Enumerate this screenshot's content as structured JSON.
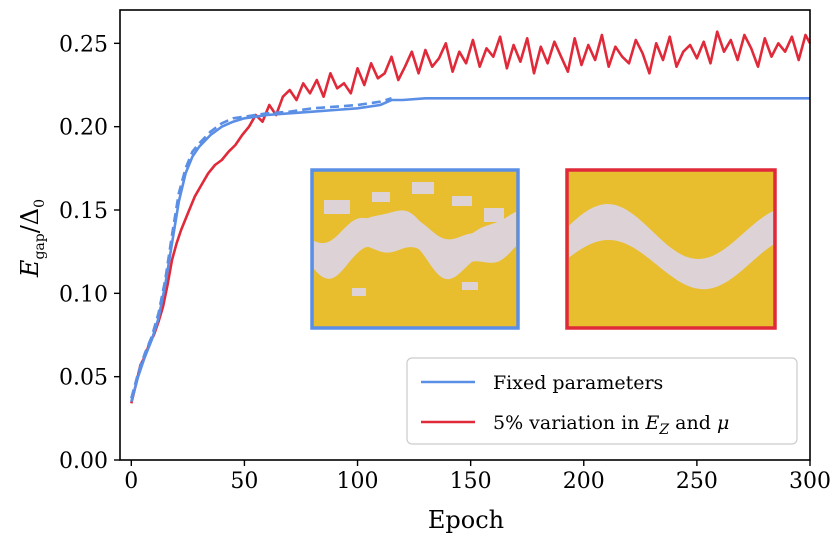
{
  "chart_data": {
    "type": "line",
    "xlabel": "Epoch",
    "ylabel": {
      "main": "E",
      "sub": "gap",
      "slash": "/",
      "delta": "Δ",
      "delta_sub": "0"
    },
    "xlim": [
      -5,
      300
    ],
    "ylim": [
      0,
      0.27
    ],
    "xticks": [
      0,
      50,
      100,
      150,
      200,
      250,
      300
    ],
    "xtick_labels": [
      "0",
      "50",
      "100",
      "150",
      "200",
      "250",
      "300"
    ],
    "yticks": [
      0.0,
      0.05,
      0.1,
      0.15,
      0.2,
      0.25
    ],
    "ytick_labels": [
      "0.00",
      "0.05",
      "0.10",
      "0.15",
      "0.20",
      "0.25"
    ],
    "grid": false,
    "legend_position": "bottom-right",
    "series": [
      {
        "name": "Fixed parameters",
        "color": "#5b8fe6",
        "style": "solid",
        "x": [
          0,
          3,
          6,
          9,
          12,
          15,
          18,
          21,
          24,
          27,
          30,
          35,
          40,
          45,
          50,
          55,
          60,
          70,
          80,
          90,
          100,
          110,
          115,
          120,
          130,
          150,
          200,
          250,
          300
        ],
        "y": [
          0.035,
          0.05,
          0.062,
          0.072,
          0.085,
          0.105,
          0.13,
          0.155,
          0.172,
          0.182,
          0.188,
          0.195,
          0.2,
          0.203,
          0.205,
          0.206,
          0.207,
          0.208,
          0.209,
          0.21,
          0.211,
          0.213,
          0.216,
          0.216,
          0.217,
          0.217,
          0.217,
          0.217,
          0.217
        ]
      },
      {
        "name": "",
        "color": "#5b8fe6",
        "style": "dashed",
        "x": [
          0,
          3,
          6,
          9,
          12,
          15,
          18,
          21,
          24,
          27,
          30,
          35,
          40,
          45,
          50,
          55,
          60,
          70,
          80,
          90,
          100,
          110,
          115
        ],
        "y": [
          0.037,
          0.052,
          0.064,
          0.074,
          0.088,
          0.108,
          0.135,
          0.16,
          0.175,
          0.185,
          0.19,
          0.197,
          0.202,
          0.205,
          0.206,
          0.207,
          0.208,
          0.209,
          0.211,
          0.212,
          0.213,
          0.215,
          0.217
        ]
      },
      {
        "name": "5% variation in E_Z and μ",
        "color": "#e02a3a",
        "style": "solid",
        "x": [
          0,
          2,
          4,
          6,
          8,
          10,
          12,
          14,
          16,
          18,
          20,
          22,
          25,
          28,
          31,
          34,
          37,
          40,
          43,
          46,
          49,
          52,
          55,
          58,
          61,
          64,
          67,
          70,
          73,
          76,
          79,
          82,
          85,
          88,
          91,
          94,
          97,
          100,
          103,
          106,
          109,
          112,
          115,
          118,
          121,
          124,
          127,
          130,
          133,
          136,
          139,
          142,
          145,
          148,
          151,
          154,
          157,
          160,
          163,
          166,
          169,
          172,
          175,
          178,
          181,
          184,
          187,
          190,
          193,
          196,
          199,
          202,
          205,
          208,
          211,
          214,
          217,
          220,
          223,
          226,
          229,
          232,
          235,
          238,
          241,
          244,
          247,
          250,
          253,
          256,
          259,
          262,
          265,
          268,
          271,
          274,
          277,
          280,
          283,
          286,
          289,
          292,
          295,
          298,
          300
        ],
        "y": [
          0.034,
          0.045,
          0.057,
          0.062,
          0.07,
          0.075,
          0.083,
          0.092,
          0.105,
          0.12,
          0.13,
          0.138,
          0.148,
          0.158,
          0.165,
          0.172,
          0.177,
          0.18,
          0.185,
          0.189,
          0.195,
          0.2,
          0.207,
          0.203,
          0.213,
          0.207,
          0.218,
          0.222,
          0.216,
          0.226,
          0.22,
          0.228,
          0.218,
          0.232,
          0.223,
          0.226,
          0.22,
          0.235,
          0.225,
          0.238,
          0.229,
          0.232,
          0.242,
          0.228,
          0.236,
          0.245,
          0.232,
          0.246,
          0.236,
          0.241,
          0.25,
          0.233,
          0.245,
          0.238,
          0.252,
          0.236,
          0.247,
          0.242,
          0.254,
          0.235,
          0.249,
          0.239,
          0.253,
          0.232,
          0.248,
          0.238,
          0.251,
          0.242,
          0.233,
          0.253,
          0.237,
          0.249,
          0.24,
          0.255,
          0.236,
          0.248,
          0.242,
          0.238,
          0.252,
          0.244,
          0.232,
          0.25,
          0.24,
          0.254,
          0.236,
          0.245,
          0.249,
          0.241,
          0.251,
          0.238,
          0.257,
          0.245,
          0.252,
          0.24,
          0.255,
          0.247,
          0.236,
          0.253,
          0.242,
          0.25,
          0.245,
          0.254,
          0.24,
          0.255,
          0.25
        ]
      }
    ],
    "legend": {
      "entries": [
        {
          "color": "#5b8fe6",
          "label": "Fixed parameters"
        },
        {
          "color": "#e02a3a",
          "label_prefix": "5% variation in ",
          "label_var": "E",
          "label_var_sub": "Z",
          "label_mid": " and ",
          "label_mu": "μ"
        }
      ]
    },
    "insets": [
      {
        "border_color": "#5b8fe6",
        "fill_color": "#e8bd2e",
        "pattern_color": "#ddd3d6",
        "pattern": "irregular-wave"
      },
      {
        "border_color": "#e02a3a",
        "fill_color": "#e8bd2e",
        "pattern_color": "#ddd3d6",
        "pattern": "smooth-wave"
      }
    ]
  }
}
